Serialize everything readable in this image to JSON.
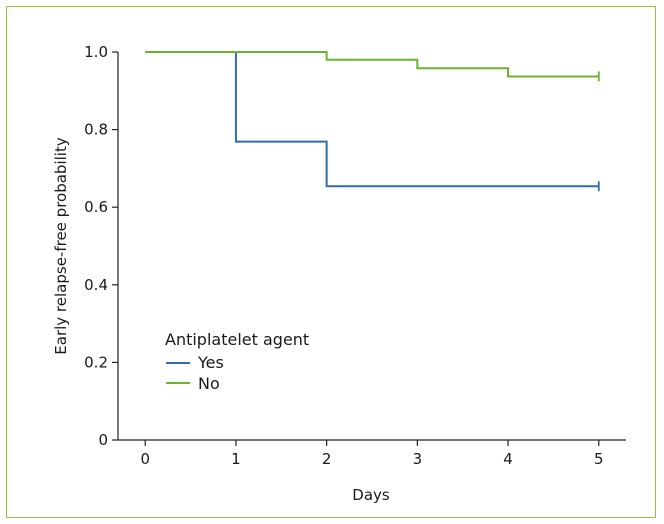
{
  "chart_data": {
    "type": "line",
    "step": true,
    "xlabel": "Days",
    "ylabel": "Early relapse-free probability",
    "xlim": [
      -0.3,
      5.3
    ],
    "ylim": [
      0,
      1.0
    ],
    "x_ticks": [
      0,
      1,
      2,
      3,
      4,
      5
    ],
    "x_tick_labels": [
      "0",
      "1",
      "2",
      "3",
      "4",
      "5"
    ],
    "y_ticks": [
      0,
      0.2,
      0.4,
      0.6,
      0.8,
      1.0
    ],
    "y_tick_labels": [
      "0",
      "0.2",
      "0.4",
      "0.6",
      "0.8",
      "1.0"
    ],
    "grid": false,
    "legend": {
      "title": "Antiplatelet agent",
      "placement": "lower-left"
    },
    "series": [
      {
        "name": "Yes",
        "color": "#2e6db4",
        "x": [
          0,
          1,
          2,
          5
        ],
        "y": [
          1.0,
          0.769,
          0.654,
          0.654
        ],
        "censor_x": [
          5
        ],
        "censor_y": [
          0.654
        ]
      },
      {
        "name": "No",
        "color": "#6ab42d",
        "x": [
          0,
          2,
          3,
          4,
          5
        ],
        "y": [
          1.0,
          0.98,
          0.958,
          0.937,
          0.937
        ],
        "censor_x": [
          5
        ],
        "censor_y": [
          0.937
        ]
      }
    ],
    "frame_color": "#8dc63f"
  }
}
